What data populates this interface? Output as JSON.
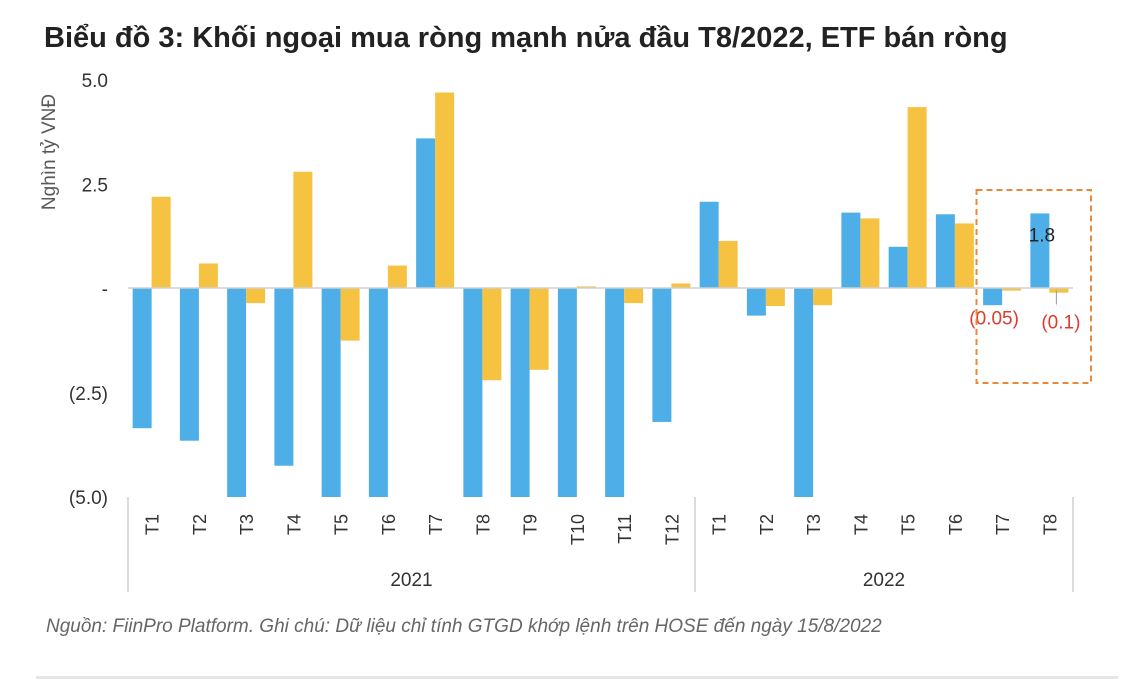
{
  "title": "Biểu đồ 3: Khối ngoại mua ròng mạnh nửa đầu T8/2022, ETF bán ròng",
  "source": "Nguồn: FiinPro Platform. Ghi chú: Dữ liệu chỉ tính GTGD khớp lệnh trên HOSE đến ngày 15/8/2022",
  "colors": {
    "series_foreign": "#4daee8",
    "series_etf": "#f5c242",
    "highlight_box": "#e8893a",
    "negative_label": "#e03a2f"
  },
  "chart_data": {
    "type": "bar",
    "ylabel": "Nghìn tỷ VNĐ",
    "ylim": [
      -5.0,
      5.0
    ],
    "yticks": [
      {
        "value": 5.0,
        "label": "5.0"
      },
      {
        "value": 2.5,
        "label": "2.5"
      },
      {
        "value": 0,
        "label": "-"
      },
      {
        "value": -2.5,
        "label": "(2.5)"
      },
      {
        "value": -5.0,
        "label": "(5.0)"
      }
    ],
    "categories": [
      "T1",
      "T2",
      "T3",
      "T4",
      "T5",
      "T6",
      "T7",
      "T8",
      "T9",
      "T10",
      "T11",
      "T12",
      "T1",
      "T2",
      "T3",
      "T4",
      "T5",
      "T6",
      "T7",
      "T8"
    ],
    "groups": [
      {
        "label": "2021",
        "count": 12
      },
      {
        "label": "2022",
        "count": 8
      }
    ],
    "series": [
      {
        "values": [
          -3.35,
          -3.65,
          -5.0,
          -4.25,
          -5.0,
          -5.0,
          3.6,
          -5.0,
          -5.0,
          -5.0,
          -5.0,
          -3.2,
          2.08,
          -0.65,
          -5.0,
          1.82,
          1.0,
          1.78,
          -0.4,
          1.8
        ]
      },
      {
        "values": [
          2.2,
          0.6,
          -0.35,
          2.8,
          -1.25,
          0.55,
          4.7,
          -2.2,
          -1.95,
          0.05,
          -0.35,
          0.12,
          1.14,
          -0.42,
          -0.4,
          1.68,
          4.35,
          1.56,
          -0.05,
          -0.1
        ]
      }
    ],
    "data_labels": [
      {
        "text": "1.8",
        "category_index": 19,
        "series": 0,
        "color": "#222222"
      },
      {
        "text": "(0.05)",
        "category_index": 18,
        "series": 1,
        "color": "#e03a2f"
      },
      {
        "text": "(0.1)",
        "category_index": 19,
        "series": 1,
        "color": "#e03a2f"
      }
    ],
    "highlight_categories": [
      18,
      19
    ],
    "grid": false
  }
}
